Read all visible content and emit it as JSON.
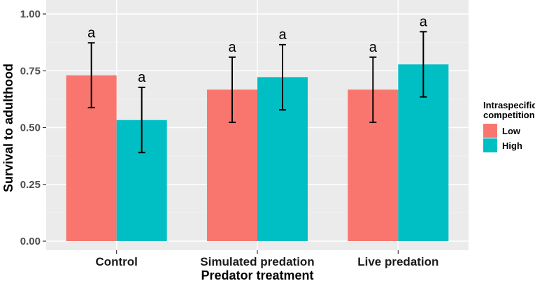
{
  "chart_data": {
    "type": "bar",
    "title": "",
    "xlabel": "Predator treatment",
    "ylabel": "Survival to adulthood",
    "ylim": [
      0,
      1.0
    ],
    "yticks": [
      "0.00",
      "0.25",
      "0.50",
      "0.75",
      "1.00"
    ],
    "ytick_values": [
      0,
      0.25,
      0.5,
      0.75,
      1.0
    ],
    "categories": [
      "Control",
      "Simulated predation",
      "Live predation"
    ],
    "series": [
      {
        "name": "Low",
        "color": "#F8766D",
        "values": [
          0.73,
          0.667,
          0.667
        ],
        "err_low": [
          0.588,
          0.523,
          0.523
        ],
        "err_high": [
          0.873,
          0.81,
          0.81
        ],
        "sig": [
          "a",
          "a",
          "a"
        ]
      },
      {
        "name": "High",
        "color": "#00BFC4",
        "values": [
          0.533,
          0.722,
          0.778
        ],
        "err_low": [
          0.39,
          0.578,
          0.635
        ],
        "err_high": [
          0.677,
          0.865,
          0.922
        ],
        "sig": [
          "a",
          "a",
          "a"
        ]
      }
    ],
    "legend": {
      "title_line1": "Intraspecific",
      "title_line2": "competition",
      "placement": "right"
    },
    "grid": true
  }
}
